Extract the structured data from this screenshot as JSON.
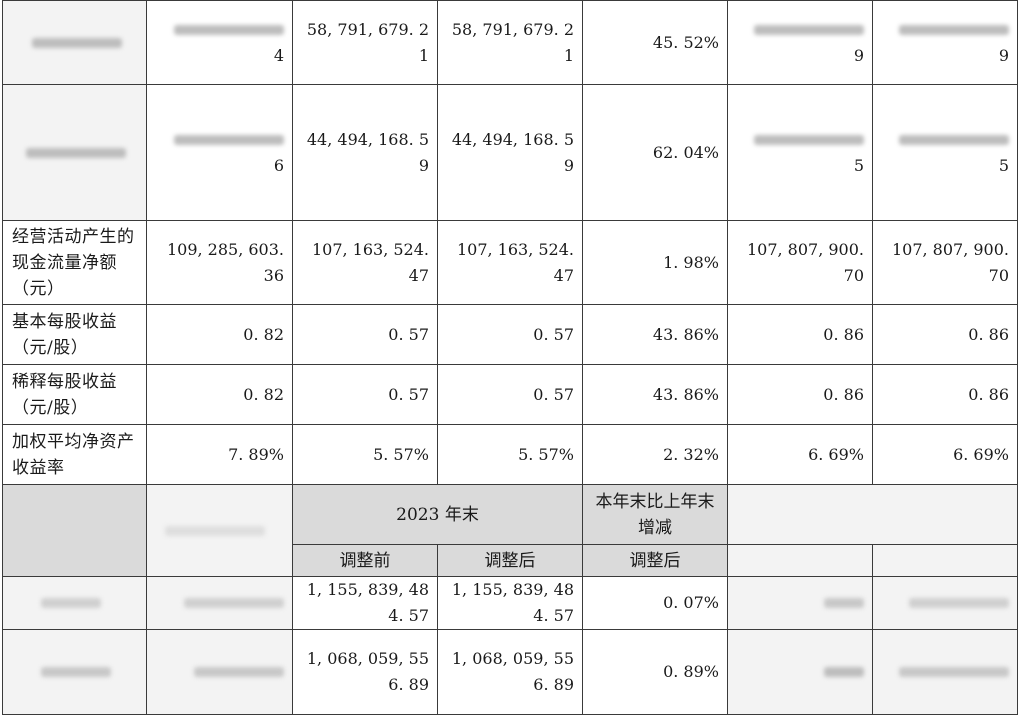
{
  "rows_top": [
    {
      "label": "",
      "c1_tail": "4",
      "c2": [
        "58, 791, 679. 2",
        "1"
      ],
      "c3": [
        "58, 791, 679. 2",
        "1"
      ],
      "c4": "45. 52%",
      "c5_tail": "9",
      "c6_tail": "9"
    },
    {
      "label": "",
      "c1_tail": "6",
      "c2": [
        "44, 494, 168. 5",
        "9"
      ],
      "c3": [
        "44, 494, 168. 5",
        "9"
      ],
      "c4": "62. 04%",
      "c5_tail": "5",
      "c6_tail": "5"
    }
  ],
  "cashflow": {
    "label": "经营活动产生的现金流量净额（元）",
    "c1": [
      "109, 285, 603.",
      "36"
    ],
    "c2": [
      "107, 163, 524.",
      "47"
    ],
    "c3": [
      "107, 163, 524.",
      "47"
    ],
    "c4": "1. 98%",
    "c5": [
      "107, 807, 900.",
      "70"
    ],
    "c6": [
      "107, 807, 900.",
      "70"
    ]
  },
  "eps_rows": [
    {
      "label": "基本每股收益（元/股）",
      "c1": "0. 82",
      "c2": "0. 57",
      "c3": "0. 57",
      "c4": "43. 86%",
      "c5": "0. 86",
      "c6": "0. 86"
    },
    {
      "label": "稀释每股收益（元/股）",
      "c1": "0. 82",
      "c2": "0. 57",
      "c3": "0. 57",
      "c4": "43. 86%",
      "c5": "0. 86",
      "c6": "0. 86"
    },
    {
      "label": "加权平均净资产收益率",
      "c1": "7. 89%",
      "c2": "5. 57%",
      "c3": "5. 57%",
      "c4": "2. 32%",
      "c5": "6. 69%",
      "c6": "6. 69%"
    }
  ],
  "header2": {
    "year_end": "2023 年末",
    "change": "本年末比上年末增减",
    "before": "调整前",
    "after": "调整后",
    "change_after": "调整后"
  },
  "bottom_rows": [
    {
      "c2": [
        "1, 155, 839, 48",
        "4. 57"
      ],
      "c3": [
        "1, 155, 839, 48",
        "4. 57"
      ],
      "c4": "0. 07%"
    },
    {
      "c2": [
        "1, 068, 059, 55",
        "6. 89"
      ],
      "c3": [
        "1, 068, 059, 55",
        "6. 89"
      ],
      "c4": "0. 89%"
    }
  ]
}
